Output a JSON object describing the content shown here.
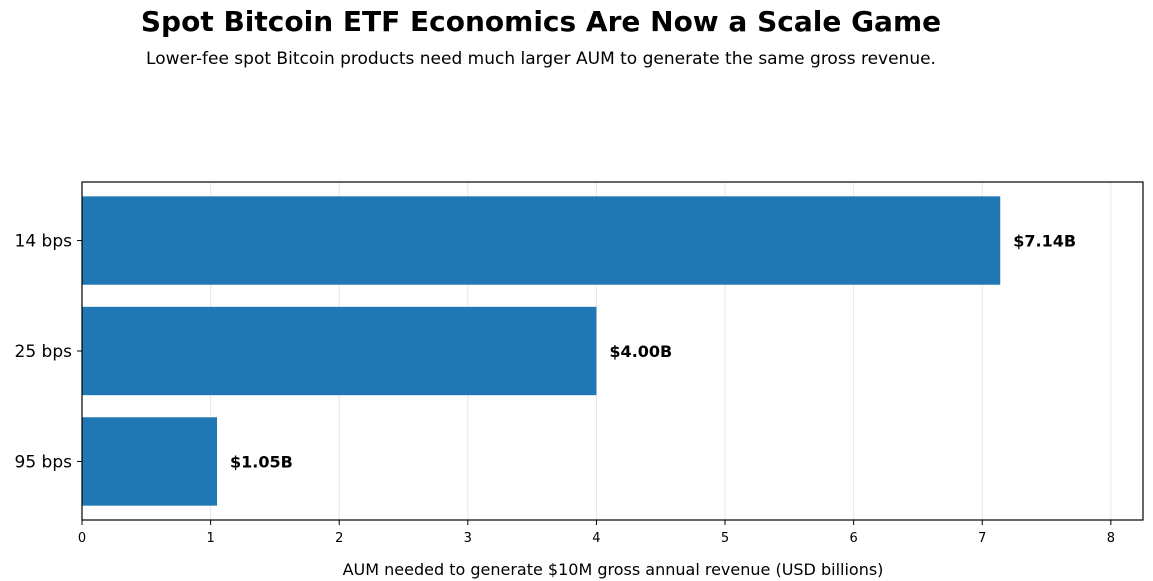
{
  "chart_data": {
    "type": "bar",
    "orientation": "horizontal",
    "title": "Spot Bitcoin ETF Economics Are Now a Scale Game",
    "subtitle": "Lower-fee spot Bitcoin products need much larger AUM to generate the same gross revenue.",
    "xlabel": "AUM needed to generate $10M gross annual revenue (USD billions)",
    "ylabel": "",
    "categories": [
      "14 bps",
      "25 bps",
      "95 bps"
    ],
    "values": [
      7.14,
      4.0,
      1.05
    ],
    "data_labels": [
      "$7.14B",
      "$4.00B",
      "$1.05B"
    ],
    "xlim": [
      0,
      8.25
    ],
    "xticks": [
      0,
      1,
      2,
      3,
      4,
      5,
      6,
      7,
      8
    ],
    "xtick_labels": [
      "0",
      "1",
      "2",
      "3",
      "4",
      "5",
      "6",
      "7",
      "8"
    ],
    "grid": "vertical",
    "bar_color": "#1f77b4",
    "grid_color": "#e6e6e6",
    "axis_color": "#000000"
  }
}
